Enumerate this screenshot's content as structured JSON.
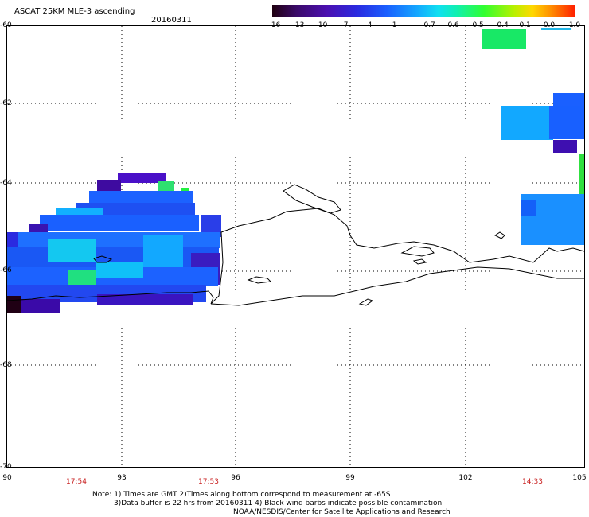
{
  "title": "ASCAT 25KM MLE-3 ascending",
  "date": "20160311",
  "colorbar": {
    "labels": [
      "-16",
      "-13",
      "-10",
      "-7",
      "-4",
      "-1",
      "-0.7",
      "-0.6",
      "-0.5",
      "-0.4",
      "-0.1",
      "0.0",
      "1.0"
    ],
    "colors": [
      "#200010",
      "#3a0a68",
      "#4b0fb0",
      "#2a2ae0",
      "#1a60ff",
      "#14a8ff",
      "#10e0f0",
      "#10f0b0",
      "#30ff30",
      "#b8f000",
      "#ffd800",
      "#ff9000",
      "#ff2000"
    ],
    "ice_line_color": "#23b7e8"
  },
  "y_axis": {
    "labels": [
      "-60",
      "-62",
      "-64",
      "-66",
      "-68",
      "-70"
    ]
  },
  "x_axis": {
    "labels": [
      "90",
      "93",
      "96",
      "99",
      "102",
      "105"
    ]
  },
  "times": [
    "17:54",
    "17:53",
    "14:33"
  ],
  "notes": {
    "line1": "Note: 1) Times are GMT 2)Times along bottom correspond to measurement at -65S",
    "line2": "3)Data buffer is 22 hrs from 20160311 4) Black wind barbs indicate possible contamination",
    "line3": "NOAA/NESDIS/Center for Satellite Applications and Research"
  }
}
